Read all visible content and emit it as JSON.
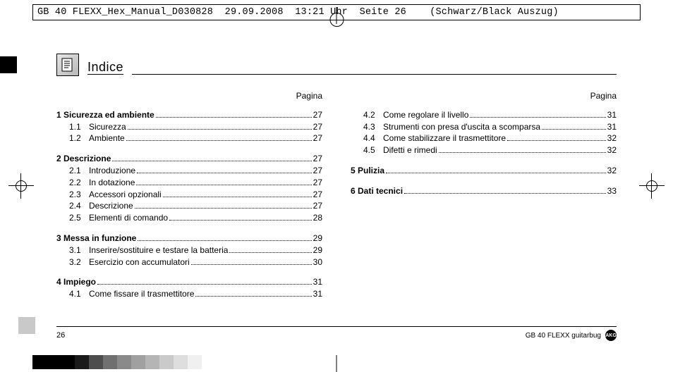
{
  "slug": "GB 40 FLEXX_Hex_Manual_D030828  29.09.2008  13:21 Uhr  Seite 26    (Schwarz/Black Auszug)",
  "title": "Indice",
  "paginaLabel": "Pagina",
  "pageNumber": "26",
  "footerBrand": "GB 40 FLEXX guitarbug",
  "brandBadge": "AKG",
  "leftSections": [
    {
      "head": {
        "num": "1",
        "text": "Sicurezza ed ambiente",
        "page": "27"
      },
      "items": [
        {
          "num": "1.1",
          "text": "Sicurezza",
          "page": "27"
        },
        {
          "num": "1.2",
          "text": "Ambiente",
          "page": "27"
        }
      ]
    },
    {
      "head": {
        "num": "2",
        "text": "Descrizione",
        "page": "27"
      },
      "items": [
        {
          "num": "2.1",
          "text": "Introduzione",
          "page": "27"
        },
        {
          "num": "2.2",
          "text": "In dotazione",
          "page": "27"
        },
        {
          "num": "2.3",
          "text": "Accessori opzionali",
          "page": "27"
        },
        {
          "num": "2.4",
          "text": "Descrizione",
          "page": "27"
        },
        {
          "num": "2.5",
          "text": "Elementi di comando",
          "page": "28"
        }
      ]
    },
    {
      "head": {
        "num": "3",
        "text": "Messa in funzione",
        "page": "29"
      },
      "items": [
        {
          "num": "3.1",
          "text": "Inserire/sostituire e testare la batteria",
          "page": "29"
        },
        {
          "num": "3.2",
          "text": "Esercizio con accumulatori",
          "page": "30"
        }
      ]
    },
    {
      "head": {
        "num": "4",
        "text": "Impiego",
        "page": "31"
      },
      "items": [
        {
          "num": "4.1",
          "text": "Come fissare il trasmettitore",
          "page": "31"
        }
      ]
    }
  ],
  "rightSections": [
    {
      "head": null,
      "items": [
        {
          "num": "4.2",
          "text": "Come regolare il livello",
          "page": "31"
        },
        {
          "num": "4.3",
          "text": "Strumenti con presa d'uscita a scomparsa",
          "page": "31"
        },
        {
          "num": "4.4",
          "text": "Come stabilizzare il trasmettitore",
          "page": "32"
        },
        {
          "num": "4.5",
          "text": "Difetti e rimedi",
          "page": "32"
        }
      ]
    },
    {
      "head": {
        "num": "5",
        "text": "Pulizia",
        "page": "32"
      },
      "items": []
    },
    {
      "head": {
        "num": "6",
        "text": "Dati tecnici",
        "page": "33"
      },
      "items": []
    }
  ],
  "swatches": [
    "#000000",
    "#000000",
    "#000000",
    "#1a1a1a",
    "#4d4d4d",
    "#707070",
    "#8a8a8a",
    "#a0a0a0",
    "#b5b5b5",
    "#cacaca",
    "#dedede",
    "#f0f0f0"
  ]
}
